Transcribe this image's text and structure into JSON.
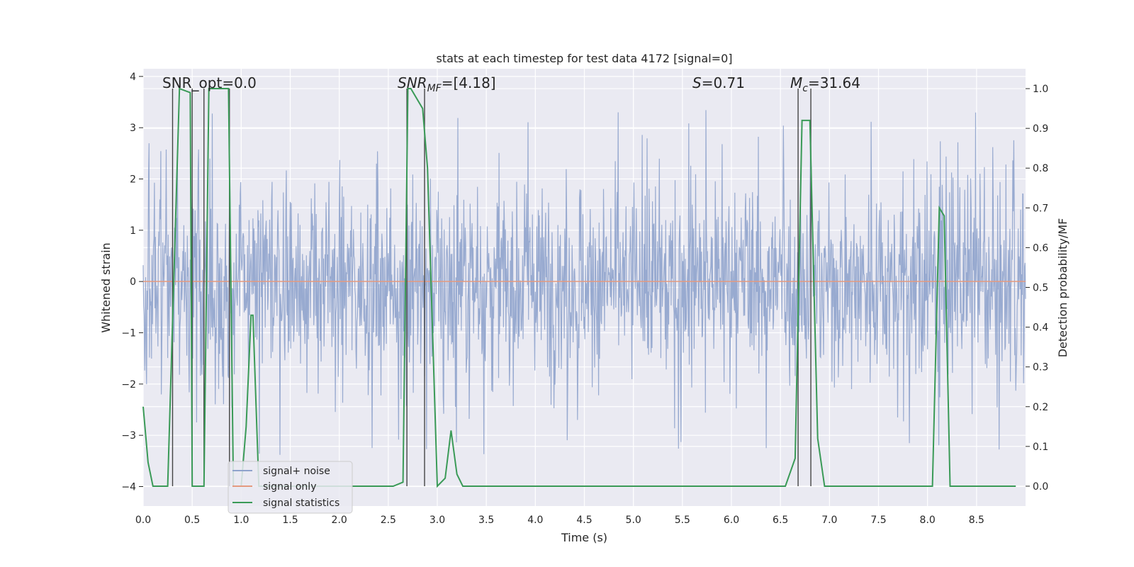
{
  "chart_data": {
    "type": "line",
    "title": "stats at each timestep for test data 4172 [signal=0]",
    "xlabel": "Time (s)",
    "ylabel_left": "Whitened strain",
    "ylabel_right": "Detection probability/MF",
    "xlim": [
      0.0,
      9.0
    ],
    "ylim_left": [
      -4.38,
      4.15
    ],
    "ylim_right": [
      -0.05,
      1.05
    ],
    "xticks": [
      "0.0",
      "0.5",
      "1.0",
      "1.5",
      "2.0",
      "2.5",
      "3.0",
      "3.5",
      "4.0",
      "4.5",
      "5.0",
      "5.5",
      "6.0",
      "6.5",
      "7.0",
      "7.5",
      "8.0",
      "8.5"
    ],
    "yticks_left": [
      "4",
      "3",
      "2",
      "1",
      "0",
      "−1",
      "−2",
      "−3",
      "−4"
    ],
    "yticks_right": [
      "1.0",
      "0.9",
      "0.8",
      "0.7",
      "0.6",
      "0.5",
      "0.4",
      "0.3",
      "0.2",
      "0.1",
      "0.0"
    ],
    "grid": true,
    "annotations": {
      "snr_opt": "SNR_opt=0.0",
      "snr_mf_main": "SNR",
      "snr_mf_sub": "MF",
      "snr_mf_value": "=[4.18]",
      "s_main": "S",
      "s_value": "=0.71",
      "mc_main": "M",
      "mc_sub": "c",
      "mc_value": "=31.64"
    },
    "legend": {
      "placement": "lower-left",
      "entries": [
        "signal+ noise",
        "signal only",
        "signal statistics"
      ]
    },
    "series": [
      {
        "name": "signal+ noise",
        "color": "#8fa3cc",
        "axis": "left",
        "description": "whitened noise, envelope approx ±1.5 with spikes to ±3.4",
        "envelope": 1.5,
        "peak": 3.4
      },
      {
        "name": "signal only",
        "color": "#e49a7f",
        "axis": "left",
        "x": [
          0.0,
          9.0
        ],
        "y": [
          0.0,
          0.0
        ]
      },
      {
        "name": "signal statistics",
        "color": "#3a9a57",
        "axis": "right",
        "x": [
          0.0,
          0.05,
          0.1,
          0.2,
          0.25,
          0.37,
          0.48,
          0.5,
          0.62,
          0.67,
          0.7,
          0.87,
          0.92,
          1.0,
          1.05,
          1.1,
          1.12,
          1.18,
          1.25,
          2.55,
          2.65,
          2.7,
          2.73,
          2.85,
          2.9,
          3.0,
          3.08,
          3.14,
          3.2,
          3.26,
          3.5,
          3.75,
          3.8,
          6.55,
          6.65,
          6.72,
          6.8,
          6.88,
          6.95,
          7.2,
          8.05,
          8.12,
          8.17,
          8.23,
          8.9
        ],
        "y": [
          0.2,
          0.06,
          0.0,
          0.0,
          0.0,
          1.0,
          0.99,
          0.0,
          0.0,
          1.0,
          1.0,
          1.0,
          0.0,
          0.0,
          0.15,
          0.43,
          0.43,
          0.0,
          0.0,
          0.0,
          0.01,
          1.0,
          1.0,
          0.95,
          0.8,
          0.0,
          0.02,
          0.14,
          0.03,
          0.0,
          0.0,
          0.0,
          0.0,
          0.0,
          0.07,
          0.92,
          0.92,
          0.12,
          0.0,
          0.0,
          0.0,
          0.7,
          0.68,
          0.0,
          0.0
        ]
      }
    ],
    "vlines_x": [
      0.3,
      0.5,
      0.62,
      0.88,
      2.69,
      2.87,
      6.68,
      6.81
    ]
  }
}
